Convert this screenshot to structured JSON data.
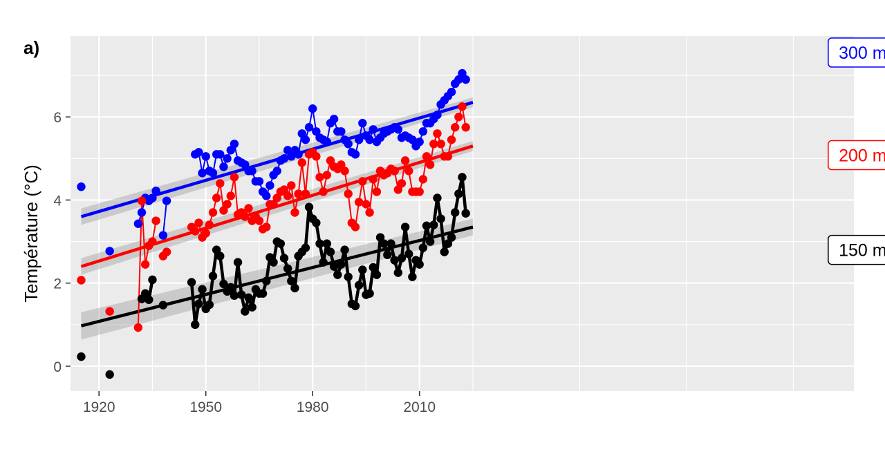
{
  "chart_data": {
    "type": "line",
    "panel_tag": "a)",
    "title": "",
    "xlabel": "",
    "ylabel": "Température (°C)",
    "xlim": [
      1912,
      2132
    ],
    "ylim": [
      -0.6,
      7.95
    ],
    "x_ticks": [
      1920,
      1950,
      1980,
      2010
    ],
    "y_ticks": [
      0,
      2,
      4,
      6
    ],
    "grid": true,
    "series": [
      {
        "name": "300 m",
        "color": "#0000ff",
        "label_box_color": "#0000ff",
        "label_x": 2134.5,
        "label_y": 7.55,
        "trend": {
          "x": [
            1915,
            2025
          ],
          "y": [
            3.6,
            6.35
          ],
          "band_half_width": [
            0.2,
            0.12
          ]
        },
        "points": [
          [
            1915,
            4.32
          ],
          [
            1923,
            2.77
          ],
          [
            1931,
            3.43
          ],
          [
            1932,
            3.7
          ],
          [
            1933,
            4.05
          ],
          [
            1934,
            3.98
          ],
          [
            1935,
            4.05
          ],
          [
            1936,
            4.22
          ],
          [
            1938,
            3.15
          ],
          [
            1939,
            3.98
          ],
          [
            1947,
            5.1
          ],
          [
            1948,
            5.15
          ],
          [
            1949,
            4.65
          ],
          [
            1950,
            5.05
          ],
          [
            1951,
            4.7
          ],
          [
            1952,
            4.65
          ],
          [
            1953,
            5.1
          ],
          [
            1954,
            5.1
          ],
          [
            1955,
            4.8
          ],
          [
            1956,
            5.0
          ],
          [
            1957,
            5.2
          ],
          [
            1958,
            5.35
          ],
          [
            1959,
            4.95
          ],
          [
            1960,
            4.9
          ],
          [
            1961,
            4.85
          ],
          [
            1962,
            4.7
          ],
          [
            1963,
            4.7
          ],
          [
            1964,
            4.45
          ],
          [
            1965,
            4.45
          ],
          [
            1966,
            4.2
          ],
          [
            1967,
            4.1
          ],
          [
            1968,
            4.35
          ],
          [
            1969,
            4.6
          ],
          [
            1970,
            4.7
          ],
          [
            1971,
            4.95
          ],
          [
            1972,
            5.0
          ],
          [
            1973,
            5.2
          ],
          [
            1974,
            5.05
          ],
          [
            1975,
            5.2
          ],
          [
            1976,
            5.1
          ],
          [
            1977,
            5.6
          ],
          [
            1978,
            5.45
          ],
          [
            1979,
            5.75
          ],
          [
            1980,
            6.2
          ],
          [
            1981,
            5.65
          ],
          [
            1982,
            5.5
          ],
          [
            1983,
            5.45
          ],
          [
            1984,
            5.4
          ],
          [
            1985,
            5.85
          ],
          [
            1986,
            5.95
          ],
          [
            1987,
            5.65
          ],
          [
            1988,
            5.65
          ],
          [
            1989,
            5.45
          ],
          [
            1990,
            5.35
          ],
          [
            1991,
            5.15
          ],
          [
            1992,
            5.1
          ],
          [
            1993,
            5.45
          ],
          [
            1994,
            5.85
          ],
          [
            1995,
            5.55
          ],
          [
            1996,
            5.45
          ],
          [
            1997,
            5.7
          ],
          [
            1998,
            5.4
          ],
          [
            1999,
            5.5
          ],
          [
            2000,
            5.6
          ],
          [
            2001,
            5.65
          ],
          [
            2002,
            5.7
          ],
          [
            2003,
            5.75
          ],
          [
            2004,
            5.7
          ],
          [
            2005,
            5.5
          ],
          [
            2006,
            5.55
          ],
          [
            2007,
            5.5
          ],
          [
            2008,
            5.45
          ],
          [
            2009,
            5.3
          ],
          [
            2010,
            5.4
          ],
          [
            2011,
            5.65
          ],
          [
            2012,
            5.85
          ],
          [
            2013,
            5.85
          ],
          [
            2014,
            5.95
          ],
          [
            2015,
            6.05
          ],
          [
            2016,
            6.3
          ],
          [
            2017,
            6.4
          ],
          [
            2018,
            6.5
          ],
          [
            2019,
            6.6
          ],
          [
            2020,
            6.8
          ],
          [
            2021,
            6.9
          ],
          [
            2022,
            7.05
          ],
          [
            2023,
            6.9
          ]
        ]
      },
      {
        "name": "200 m",
        "color": "#ff0000",
        "label_box_color": "#ff0000",
        "label_x": 2134.5,
        "label_y": 5.08,
        "trend": {
          "x": [
            1915,
            2025
          ],
          "y": [
            2.4,
            5.3
          ],
          "band_half_width": [
            0.2,
            0.12
          ]
        },
        "points": [
          [
            1915,
            2.07
          ],
          [
            1923,
            1.32
          ],
          [
            1931,
            0.93
          ],
          [
            1932,
            3.98
          ],
          [
            1933,
            2.45
          ],
          [
            1934,
            2.9
          ],
          [
            1935,
            3.0
          ],
          [
            1936,
            3.5
          ],
          [
            1938,
            2.65
          ],
          [
            1939,
            2.75
          ],
          [
            1946,
            3.35
          ],
          [
            1947,
            3.25
          ],
          [
            1948,
            3.45
          ],
          [
            1949,
            3.1
          ],
          [
            1950,
            3.2
          ],
          [
            1951,
            3.4
          ],
          [
            1952,
            3.7
          ],
          [
            1953,
            4.05
          ],
          [
            1954,
            4.4
          ],
          [
            1955,
            3.75
          ],
          [
            1956,
            3.9
          ],
          [
            1957,
            4.1
          ],
          [
            1958,
            4.55
          ],
          [
            1959,
            3.65
          ],
          [
            1960,
            3.7
          ],
          [
            1961,
            3.6
          ],
          [
            1962,
            3.8
          ],
          [
            1963,
            3.5
          ],
          [
            1964,
            3.6
          ],
          [
            1965,
            3.5
          ],
          [
            1966,
            3.3
          ],
          [
            1967,
            3.35
          ],
          [
            1968,
            3.9
          ],
          [
            1969,
            3.9
          ],
          [
            1970,
            4.05
          ],
          [
            1971,
            4.2
          ],
          [
            1972,
            4.25
          ],
          [
            1973,
            4.1
          ],
          [
            1974,
            4.35
          ],
          [
            1975,
            3.7
          ],
          [
            1976,
            4.15
          ],
          [
            1977,
            4.9
          ],
          [
            1978,
            4.15
          ],
          [
            1979,
            5.1
          ],
          [
            1980,
            5.15
          ],
          [
            1981,
            5.05
          ],
          [
            1982,
            4.55
          ],
          [
            1983,
            4.2
          ],
          [
            1984,
            4.6
          ],
          [
            1985,
            4.95
          ],
          [
            1986,
            4.8
          ],
          [
            1987,
            4.75
          ],
          [
            1988,
            4.85
          ],
          [
            1989,
            4.7
          ],
          [
            1990,
            4.15
          ],
          [
            1991,
            3.45
          ],
          [
            1992,
            3.35
          ],
          [
            1993,
            3.95
          ],
          [
            1994,
            4.45
          ],
          [
            1995,
            3.9
          ],
          [
            1996,
            3.7
          ],
          [
            1997,
            4.5
          ],
          [
            1998,
            4.2
          ],
          [
            1999,
            4.7
          ],
          [
            2000,
            4.6
          ],
          [
            2001,
            4.65
          ],
          [
            2002,
            4.75
          ],
          [
            2003,
            4.7
          ],
          [
            2004,
            4.25
          ],
          [
            2005,
            4.4
          ],
          [
            2006,
            4.95
          ],
          [
            2007,
            4.7
          ],
          [
            2008,
            4.2
          ],
          [
            2009,
            4.2
          ],
          [
            2010,
            4.2
          ],
          [
            2011,
            4.5
          ],
          [
            2012,
            5.05
          ],
          [
            2013,
            4.85
          ],
          [
            2014,
            5.35
          ],
          [
            2015,
            5.6
          ],
          [
            2016,
            5.35
          ],
          [
            2017,
            5.05
          ],
          [
            2018,
            5.05
          ],
          [
            2019,
            5.45
          ],
          [
            2020,
            5.75
          ],
          [
            2021,
            6.0
          ],
          [
            2022,
            6.25
          ],
          [
            2023,
            5.75
          ]
        ]
      },
      {
        "name": "150 m",
        "color": "#000000",
        "label_box_color": "#000000",
        "label_x": 2134.5,
        "label_y": 2.8,
        "trend": {
          "x": [
            1915,
            2025
          ],
          "y": [
            0.97,
            3.35
          ],
          "band_half_width": [
            0.33,
            0.2
          ]
        },
        "points": [
          [
            1915,
            0.23
          ],
          [
            1923,
            -0.2
          ],
          [
            1932,
            1.62
          ],
          [
            1933,
            1.75
          ],
          [
            1934,
            1.6
          ],
          [
            1935,
            2.08
          ],
          [
            1938,
            1.47
          ],
          [
            1946,
            2.02
          ],
          [
            1947,
            1.0
          ],
          [
            1948,
            1.5
          ],
          [
            1949,
            1.85
          ],
          [
            1950,
            1.38
          ],
          [
            1951,
            1.48
          ],
          [
            1952,
            2.17
          ],
          [
            1953,
            2.8
          ],
          [
            1954,
            2.65
          ],
          [
            1955,
            1.98
          ],
          [
            1956,
            1.8
          ],
          [
            1957,
            1.9
          ],
          [
            1958,
            1.7
          ],
          [
            1959,
            2.5
          ],
          [
            1960,
            1.72
          ],
          [
            1961,
            1.32
          ],
          [
            1962,
            1.65
          ],
          [
            1963,
            1.42
          ],
          [
            1964,
            1.85
          ],
          [
            1965,
            1.75
          ],
          [
            1966,
            1.75
          ],
          [
            1967,
            2.05
          ],
          [
            1968,
            2.62
          ],
          [
            1969,
            2.5
          ],
          [
            1970,
            3.0
          ],
          [
            1971,
            2.95
          ],
          [
            1972,
            2.6
          ],
          [
            1973,
            2.35
          ],
          [
            1974,
            2.05
          ],
          [
            1975,
            1.88
          ],
          [
            1976,
            2.65
          ],
          [
            1977,
            2.75
          ],
          [
            1978,
            2.85
          ],
          [
            1979,
            3.83
          ],
          [
            1980,
            3.55
          ],
          [
            1981,
            3.45
          ],
          [
            1982,
            2.95
          ],
          [
            1983,
            2.5
          ],
          [
            1984,
            2.95
          ],
          [
            1985,
            2.75
          ],
          [
            1986,
            2.4
          ],
          [
            1987,
            2.2
          ],
          [
            1988,
            2.45
          ],
          [
            1989,
            2.8
          ],
          [
            1990,
            2.15
          ],
          [
            1991,
            1.5
          ],
          [
            1992,
            1.45
          ],
          [
            1993,
            1.95
          ],
          [
            1994,
            2.32
          ],
          [
            1995,
            1.72
          ],
          [
            1996,
            1.75
          ],
          [
            1997,
            2.38
          ],
          [
            1998,
            2.2
          ],
          [
            1999,
            3.1
          ],
          [
            2000,
            2.95
          ],
          [
            2001,
            2.68
          ],
          [
            2002,
            2.95
          ],
          [
            2003,
            2.55
          ],
          [
            2004,
            2.25
          ],
          [
            2005,
            2.6
          ],
          [
            2006,
            3.35
          ],
          [
            2007,
            2.7
          ],
          [
            2008,
            2.15
          ],
          [
            2009,
            2.55
          ],
          [
            2010,
            2.45
          ],
          [
            2011,
            2.85
          ],
          [
            2012,
            3.38
          ],
          [
            2013,
            3.0
          ],
          [
            2014,
            3.4
          ],
          [
            2015,
            4.05
          ],
          [
            2016,
            3.55
          ],
          [
            2017,
            2.75
          ],
          [
            2018,
            2.95
          ],
          [
            2019,
            3.1
          ],
          [
            2020,
            3.7
          ],
          [
            2021,
            4.15
          ],
          [
            2022,
            4.55
          ],
          [
            2023,
            3.68
          ]
        ]
      }
    ]
  }
}
